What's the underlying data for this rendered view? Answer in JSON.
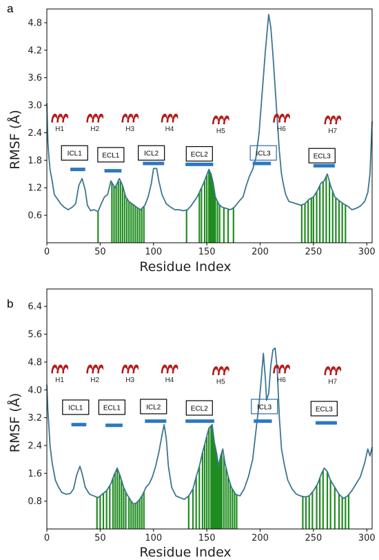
{
  "chart_data": [
    {
      "panel": "a",
      "type": "line",
      "xlabel": "Residue Index",
      "ylabel": "RMSF (Å)",
      "xlim": [
        0,
        305
      ],
      "ylim": [
        0,
        5.1
      ],
      "xticks": [
        0,
        50,
        100,
        150,
        200,
        250,
        300
      ],
      "yticks": [
        0.6,
        1.2,
        1.8,
        2.4,
        3.0,
        3.6,
        4.2,
        4.8
      ],
      "line_color": "#3a7590",
      "bar_color": "#1f8c1f",
      "helices": [
        {
          "label": "H1",
          "x": 12,
          "y": 2.72
        },
        {
          "label": "H2",
          "x": 45,
          "y": 2.72
        },
        {
          "label": "H3",
          "x": 78,
          "y": 2.72
        },
        {
          "label": "H4",
          "x": 115,
          "y": 2.72
        },
        {
          "label": "H5",
          "x": 163,
          "y": 2.68
        },
        {
          "label": "H6",
          "x": 220,
          "y": 2.72
        },
        {
          "label": "H7",
          "x": 268,
          "y": 2.68
        }
      ],
      "loops": [
        {
          "label": "ICL1",
          "x": 26,
          "box_y": 1.96,
          "bar": [
            22,
            36
          ],
          "bar_y": 1.6,
          "highlight": false
        },
        {
          "label": "ECL1",
          "x": 60,
          "box_y": 1.92,
          "bar": [
            54,
            70
          ],
          "bar_y": 1.57,
          "highlight": false
        },
        {
          "label": "ICL2",
          "x": 98,
          "box_y": 1.96,
          "bar": [
            90,
            110
          ],
          "bar_y": 1.73,
          "highlight": false
        },
        {
          "label": "ECL2",
          "x": 143,
          "box_y": 1.94,
          "bar": [
            130,
            156
          ],
          "bar_y": 1.71,
          "highlight": false
        },
        {
          "label": "ICL3",
          "x": 203,
          "box_y": 1.96,
          "bar": [
            193,
            210
          ],
          "bar_y": 1.73,
          "highlight": true
        },
        {
          "label": "ECL3",
          "x": 258,
          "box_y": 1.9,
          "bar": [
            250,
            270
          ],
          "bar_y": 1.68,
          "highlight": false
        }
      ],
      "rmsf_profile": [
        [
          0,
          3.05
        ],
        [
          1,
          2.2
        ],
        [
          2,
          1.85
        ],
        [
          3,
          1.6
        ],
        [
          5,
          1.35
        ],
        [
          7,
          1.05
        ],
        [
          10,
          0.95
        ],
        [
          13,
          0.85
        ],
        [
          16,
          0.78
        ],
        [
          20,
          0.72
        ],
        [
          24,
          0.78
        ],
        [
          27,
          0.85
        ],
        [
          30,
          1.25
        ],
        [
          33,
          1.4
        ],
        [
          36,
          1.15
        ],
        [
          38,
          0.82
        ],
        [
          41,
          0.7
        ],
        [
          44,
          0.72
        ],
        [
          48,
          0.68
        ],
        [
          51,
          0.85
        ],
        [
          54,
          1.0
        ],
        [
          57,
          1.05
        ],
        [
          60,
          1.35
        ],
        [
          64,
          1.2
        ],
        [
          68,
          1.4
        ],
        [
          71,
          1.25
        ],
        [
          74,
          1.0
        ],
        [
          77,
          0.9
        ],
        [
          80,
          0.85
        ],
        [
          84,
          0.78
        ],
        [
          88,
          0.72
        ],
        [
          92,
          0.82
        ],
        [
          95,
          1.0
        ],
        [
          98,
          1.3
        ],
        [
          100,
          1.62
        ],
        [
          103,
          1.62
        ],
        [
          105,
          1.35
        ],
        [
          108,
          1.05
        ],
        [
          112,
          0.85
        ],
        [
          116,
          0.78
        ],
        [
          120,
          0.72
        ],
        [
          124,
          0.72
        ],
        [
          128,
          0.7
        ],
        [
          132,
          0.72
        ],
        [
          135,
          0.8
        ],
        [
          138,
          0.9
        ],
        [
          141,
          1.0
        ],
        [
          144,
          1.15
        ],
        [
          147,
          1.3
        ],
        [
          150,
          1.48
        ],
        [
          152,
          1.6
        ],
        [
          154,
          1.5
        ],
        [
          156,
          1.3
        ],
        [
          158,
          1.0
        ],
        [
          161,
          0.85
        ],
        [
          164,
          0.78
        ],
        [
          168,
          0.75
        ],
        [
          172,
          0.72
        ],
        [
          176,
          0.78
        ],
        [
          180,
          0.9
        ],
        [
          184,
          1.0
        ],
        [
          187,
          1.25
        ],
        [
          190,
          1.45
        ],
        [
          193,
          1.6
        ],
        [
          196,
          1.85
        ],
        [
          199,
          2.4
        ],
        [
          202,
          3.3
        ],
        [
          205,
          4.2
        ],
        [
          208,
          4.98
        ],
        [
          210,
          4.7
        ],
        [
          212,
          4.1
        ],
        [
          214,
          3.4
        ],
        [
          216,
          2.7
        ],
        [
          218,
          2.0
        ],
        [
          220,
          1.5
        ],
        [
          222,
          1.25
        ],
        [
          224,
          1.05
        ],
        [
          227,
          0.9
        ],
        [
          230,
          0.88
        ],
        [
          234,
          0.85
        ],
        [
          238,
          0.82
        ],
        [
          242,
          0.85
        ],
        [
          246,
          0.95
        ],
        [
          250,
          1.0
        ],
        [
          254,
          1.15
        ],
        [
          257,
          1.3
        ],
        [
          260,
          1.35
        ],
        [
          263,
          1.5
        ],
        [
          266,
          1.25
        ],
        [
          270,
          1.0
        ],
        [
          274,
          0.92
        ],
        [
          278,
          0.85
        ],
        [
          282,
          0.8
        ],
        [
          286,
          0.72
        ],
        [
          290,
          0.75
        ],
        [
          294,
          0.8
        ],
        [
          298,
          0.9
        ],
        [
          301,
          1.1
        ],
        [
          303,
          1.5
        ],
        [
          305,
          2.65
        ]
      ],
      "contact_residues": [
        48,
        61,
        63,
        65,
        67,
        69,
        71,
        73,
        75,
        77,
        79,
        81,
        83,
        85,
        87,
        89,
        91,
        131,
        143,
        145,
        148,
        150,
        152,
        153,
        154,
        155,
        156,
        157,
        158,
        160,
        162,
        166,
        170,
        175,
        239,
        242,
        245,
        248,
        250,
        253,
        256,
        259,
        262,
        265,
        268,
        271,
        274,
        277,
        280
      ]
    },
    {
      "panel": "b",
      "type": "line",
      "xlabel": "Residue Index",
      "ylabel": "RMSF (Å)",
      "xlim": [
        0,
        305
      ],
      "ylim": [
        0,
        6.9
      ],
      "xticks": [
        0,
        50,
        100,
        150,
        200,
        250,
        300
      ],
      "yticks": [
        0.8,
        1.6,
        2.4,
        3.2,
        4.0,
        4.8,
        5.6,
        6.4
      ],
      "line_color": "#3a7590",
      "bar_color": "#1f8c1f",
      "helices": [
        {
          "label": "H1",
          "x": 12,
          "y": 4.6
        },
        {
          "label": "H2",
          "x": 45,
          "y": 4.6
        },
        {
          "label": "H3",
          "x": 78,
          "y": 4.6
        },
        {
          "label": "H4",
          "x": 115,
          "y": 4.6
        },
        {
          "label": "H5",
          "x": 163,
          "y": 4.55
        },
        {
          "label": "H6",
          "x": 220,
          "y": 4.6
        },
        {
          "label": "H7",
          "x": 268,
          "y": 4.55
        }
      ],
      "loops": [
        {
          "label": "ICL1",
          "x": 27,
          "box_y": 3.5,
          "bar": [
            23,
            37
          ],
          "bar_y": 3.0,
          "highlight": false
        },
        {
          "label": "ECL1",
          "x": 61,
          "box_y": 3.5,
          "bar": [
            55,
            71
          ],
          "bar_y": 2.98,
          "highlight": false
        },
        {
          "label": "ICL2",
          "x": 100,
          "box_y": 3.52,
          "bar": [
            92,
            112
          ],
          "bar_y": 3.1,
          "highlight": false
        },
        {
          "label": "ECL2",
          "x": 143,
          "box_y": 3.48,
          "bar": [
            130,
            157
          ],
          "bar_y": 3.1,
          "highlight": false
        },
        {
          "label": "ICL3",
          "x": 204,
          "box_y": 3.52,
          "bar": [
            194,
            211
          ],
          "bar_y": 3.1,
          "highlight": true
        },
        {
          "label": "ECL3",
          "x": 260,
          "box_y": 3.46,
          "bar": [
            252,
            272
          ],
          "bar_y": 3.05,
          "highlight": false
        }
      ],
      "rmsf_profile": [
        [
          0,
          4.15
        ],
        [
          1,
          3.4
        ],
        [
          2,
          2.9
        ],
        [
          3,
          2.4
        ],
        [
          5,
          1.9
        ],
        [
          8,
          1.4
        ],
        [
          11,
          1.2
        ],
        [
          14,
          1.05
        ],
        [
          18,
          1.0
        ],
        [
          22,
          1.02
        ],
        [
          25,
          1.15
        ],
        [
          28,
          1.55
        ],
        [
          31,
          1.8
        ],
        [
          33,
          1.6
        ],
        [
          36,
          1.2
        ],
        [
          40,
          1.0
        ],
        [
          44,
          0.95
        ],
        [
          48,
          0.9
        ],
        [
          52,
          1.0
        ],
        [
          56,
          1.1
        ],
        [
          60,
          1.3
        ],
        [
          63,
          1.55
        ],
        [
          66,
          1.75
        ],
        [
          69,
          1.5
        ],
        [
          72,
          1.2
        ],
        [
          75,
          1.0
        ],
        [
          78,
          0.85
        ],
        [
          81,
          0.72
        ],
        [
          84,
          0.75
        ],
        [
          87,
          0.85
        ],
        [
          90,
          1.0
        ],
        [
          93,
          1.2
        ],
        [
          96,
          1.3
        ],
        [
          99,
          1.5
        ],
        [
          102,
          1.8
        ],
        [
          105,
          2.2
        ],
        [
          108,
          2.7
        ],
        [
          110,
          3.0
        ],
        [
          112,
          2.6
        ],
        [
          114,
          1.8
        ],
        [
          117,
          1.2
        ],
        [
          121,
          0.95
        ],
        [
          125,
          0.9
        ],
        [
          129,
          0.85
        ],
        [
          133,
          0.95
        ],
        [
          137,
          1.15
        ],
        [
          140,
          1.5
        ],
        [
          143,
          1.8
        ],
        [
          146,
          2.2
        ],
        [
          149,
          2.55
        ],
        [
          152,
          2.9
        ],
        [
          155,
          3.0
        ],
        [
          157,
          2.5
        ],
        [
          159,
          2.2
        ],
        [
          161,
          1.8
        ],
        [
          163,
          2.1
        ],
        [
          165,
          2.3
        ],
        [
          167,
          1.9
        ],
        [
          170,
          1.5
        ],
        [
          173,
          1.2
        ],
        [
          177,
          1.0
        ],
        [
          181,
          0.95
        ],
        [
          185,
          1.15
        ],
        [
          189,
          1.5
        ],
        [
          193,
          2.0
        ],
        [
          196,
          2.8
        ],
        [
          199,
          3.6
        ],
        [
          201,
          4.3
        ],
        [
          203,
          5.05
        ],
        [
          205,
          4.3
        ],
        [
          206,
          3.7
        ],
        [
          208,
          3.9
        ],
        [
          210,
          4.7
        ],
        [
          212,
          5.15
        ],
        [
          214,
          5.2
        ],
        [
          216,
          4.6
        ],
        [
          218,
          3.2
        ],
        [
          220,
          2.3
        ],
        [
          223,
          1.8
        ],
        [
          226,
          1.4
        ],
        [
          230,
          1.15
        ],
        [
          234,
          1.0
        ],
        [
          238,
          0.95
        ],
        [
          242,
          0.92
        ],
        [
          246,
          0.95
        ],
        [
          250,
          1.1
        ],
        [
          254,
          1.3
        ],
        [
          257,
          1.55
        ],
        [
          260,
          1.75
        ],
        [
          263,
          1.65
        ],
        [
          266,
          1.4
        ],
        [
          270,
          1.2
        ],
        [
          274,
          1.0
        ],
        [
          278,
          0.88
        ],
        [
          282,
          0.95
        ],
        [
          286,
          1.1
        ],
        [
          290,
          1.3
        ],
        [
          294,
          1.5
        ],
        [
          298,
          1.9
        ],
        [
          301,
          2.3
        ],
        [
          303,
          2.1
        ],
        [
          305,
          2.35
        ]
      ],
      "contact_residues": [
        47,
        50,
        53,
        56,
        59,
        62,
        64,
        66,
        68,
        70,
        72,
        74,
        77,
        79,
        81,
        83,
        85,
        87,
        89,
        91,
        133,
        137,
        140,
        143,
        146,
        148,
        150,
        152,
        154,
        155,
        156,
        157,
        158,
        159,
        160,
        161,
        162,
        163,
        164,
        166,
        168,
        170,
        172,
        174,
        176,
        178,
        240,
        243,
        246,
        249,
        253,
        256,
        259,
        263,
        266,
        270,
        274,
        277,
        280,
        283
      ]
    }
  ]
}
